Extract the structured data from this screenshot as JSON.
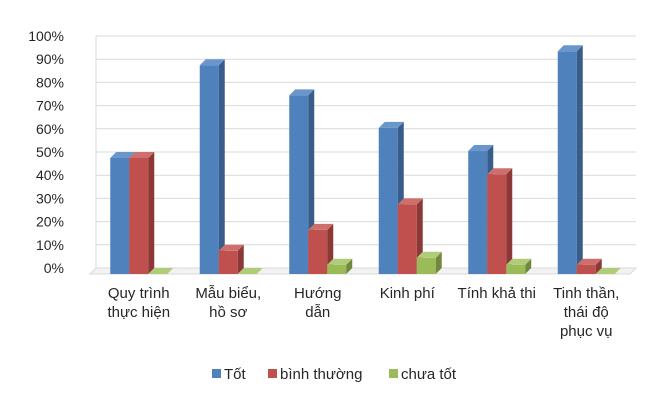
{
  "chart_data": {
    "type": "bar",
    "style": "3d-clustered-column",
    "categories": [
      [
        "Quy trình",
        "thực hiện"
      ],
      [
        "Mẫu biểu,",
        "hồ sơ"
      ],
      [
        "Hướng",
        "dẫn"
      ],
      [
        "Kinh phí"
      ],
      [
        "Tính khả thi"
      ],
      [
        "Tinh thần,",
        "thái độ",
        "phục vụ"
      ]
    ],
    "series": [
      {
        "name": "Tốt",
        "color": "#4F81BD",
        "side": "#385D8A",
        "top": "#6A96CC",
        "values": [
          50,
          90,
          77,
          63,
          53,
          96
        ]
      },
      {
        "name": "bình thường",
        "color": "#C0504D",
        "side": "#8C3836",
        "top": "#CD706D",
        "values": [
          50,
          10,
          19,
          30,
          43,
          4
        ]
      },
      {
        "name": "chưa tốt",
        "color": "#9BBB59",
        "side": "#71893F",
        "top": "#B0CC78",
        "values": [
          0,
          0,
          4,
          7,
          4,
          0
        ]
      }
    ],
    "yticks": [
      "0%",
      "10%",
      "20%",
      "30%",
      "40%",
      "50%",
      "60%",
      "70%",
      "80%",
      "90%",
      "100%"
    ],
    "ylim": [
      0,
      100
    ],
    "grid": true,
    "legend": "bottom",
    "title": "",
    "xlabel": "",
    "ylabel": ""
  }
}
